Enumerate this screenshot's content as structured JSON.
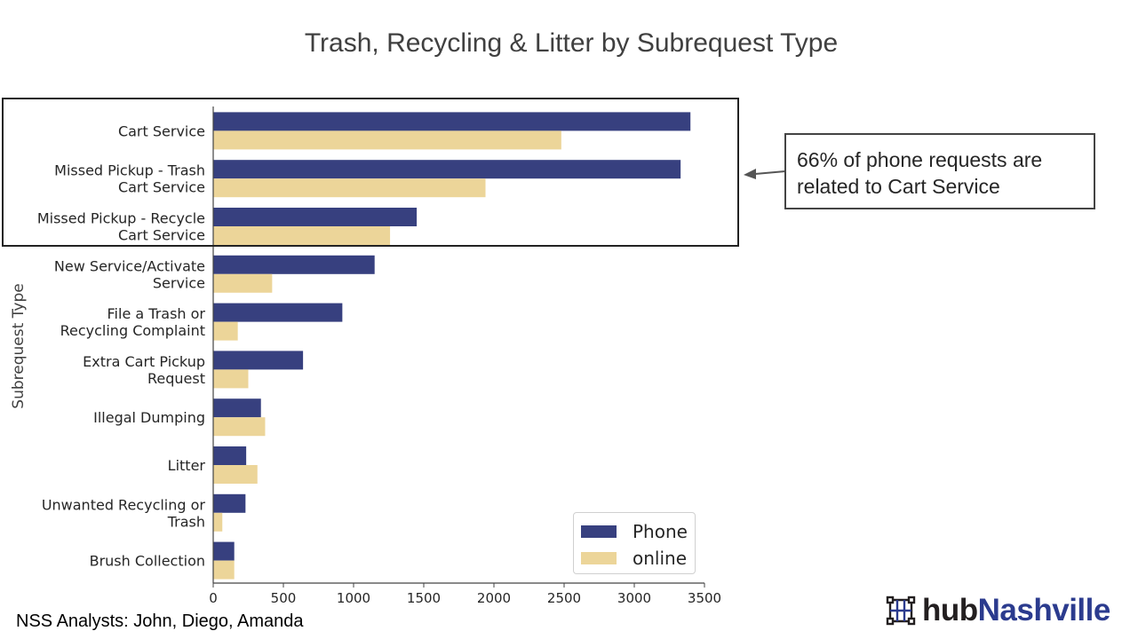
{
  "title": "Trash, Recycling & Litter by Subrequest Type",
  "colors": {
    "phone": "#37407f",
    "online": "#ecd599",
    "axis": "#444444"
  },
  "callout": {
    "text": "66% of phone requests are related to Cart Service"
  },
  "footer": {
    "text": "NSS Analysts: John, Diego, Amanda"
  },
  "logo": {
    "hub": "hub",
    "city": "Nashville",
    "icon": "hub-network-icon"
  },
  "chart_data": {
    "type": "bar",
    "orientation": "horizontal",
    "title": "Trash, Recycling & Litter by Subrequest Type",
    "ylabel": "Subrequest Type",
    "xlabel": "",
    "xlim": [
      0,
      3500
    ],
    "xticks": [
      0,
      500,
      1000,
      1500,
      2000,
      2500,
      3000,
      3500
    ],
    "grid": false,
    "legend_position": "bottom-right",
    "categories": [
      [
        "Cart Service"
      ],
      [
        "Missed Pickup - Trash",
        "Cart Service"
      ],
      [
        "Missed Pickup - Recycle",
        "Cart Service"
      ],
      [
        "New Service/Activate",
        "Service"
      ],
      [
        "File a Trash or",
        "Recycling Complaint"
      ],
      [
        "Extra Cart Pickup",
        "Request"
      ],
      [
        "Illegal Dumping"
      ],
      [
        "Litter"
      ],
      [
        "Unwanted Recycling or",
        "Trash"
      ],
      [
        "Brush Collection"
      ]
    ],
    "series": [
      {
        "name": "Phone",
        "values": [
          3400,
          3330,
          1450,
          1150,
          920,
          640,
          340,
          235,
          230,
          150
        ]
      },
      {
        "name": "online",
        "values": [
          2480,
          1940,
          1260,
          420,
          175,
          250,
          370,
          315,
          65,
          150
        ]
      }
    ]
  }
}
